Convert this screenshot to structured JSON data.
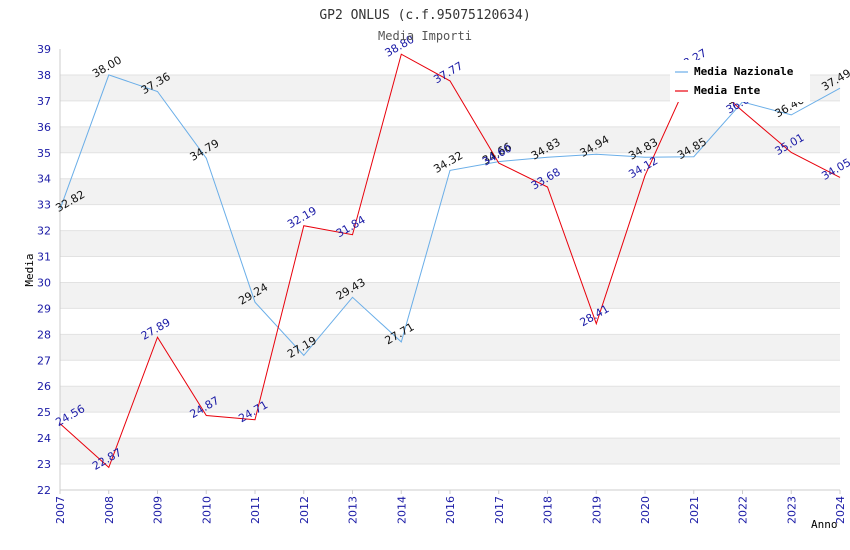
{
  "chart_data": {
    "type": "line",
    "title": "GP2 ONLUS (c.f.95075120634)",
    "subtitle": "Media Importi",
    "xlabel": "Anno",
    "ylabel": "Media",
    "categories": [
      "2007",
      "2008",
      "2009",
      "2010",
      "2011",
      "2012",
      "2013",
      "2014",
      "2016",
      "2017",
      "2018",
      "2019",
      "2020",
      "2021",
      "2022",
      "2023",
      "2024"
    ],
    "ylim": [
      22,
      39
    ],
    "yticks": [
      "22",
      "23",
      "24",
      "25",
      "26",
      "27",
      "28",
      "29",
      "30",
      "31",
      "32",
      "33",
      "34",
      "35",
      "36",
      "37",
      "38",
      "39"
    ],
    "grid": "horizontal bands",
    "legend_position": "top-right",
    "series": [
      {
        "name": "Media Nazionale",
        "color": "#6aaee8",
        "values": [
          32.82,
          38.0,
          37.36,
          34.79,
          29.24,
          27.19,
          29.43,
          27.71,
          34.32,
          34.66,
          34.83,
          34.94,
          34.83,
          34.85,
          36.96,
          36.46,
          37.49
        ],
        "labels": [
          "32.82",
          "38.00",
          "37.36",
          "34.79",
          "29.24",
          "27.19",
          "29.43",
          "27.71",
          "34.32",
          "34.66",
          "34.83",
          "34.94",
          "34.83",
          "34.85",
          "36.96",
          "36.46",
          "37.49"
        ]
      },
      {
        "name": "Media Ente",
        "color": "#e8000b",
        "values": [
          24.56,
          22.87,
          27.89,
          24.87,
          24.71,
          32.19,
          31.84,
          38.8,
          37.77,
          34.6,
          33.68,
          28.41,
          34.12,
          38.27,
          36.61,
          35.01,
          34.05
        ],
        "labels": [
          "24.56",
          "22.87",
          "27.89",
          "24.87",
          "24.71",
          "32.19",
          "31.84",
          "38.80",
          "37.77",
          "34.60",
          "33.68",
          "28.41",
          "34.12",
          "38.27",
          "36.61",
          "35.01",
          "34.05"
        ]
      }
    ]
  }
}
